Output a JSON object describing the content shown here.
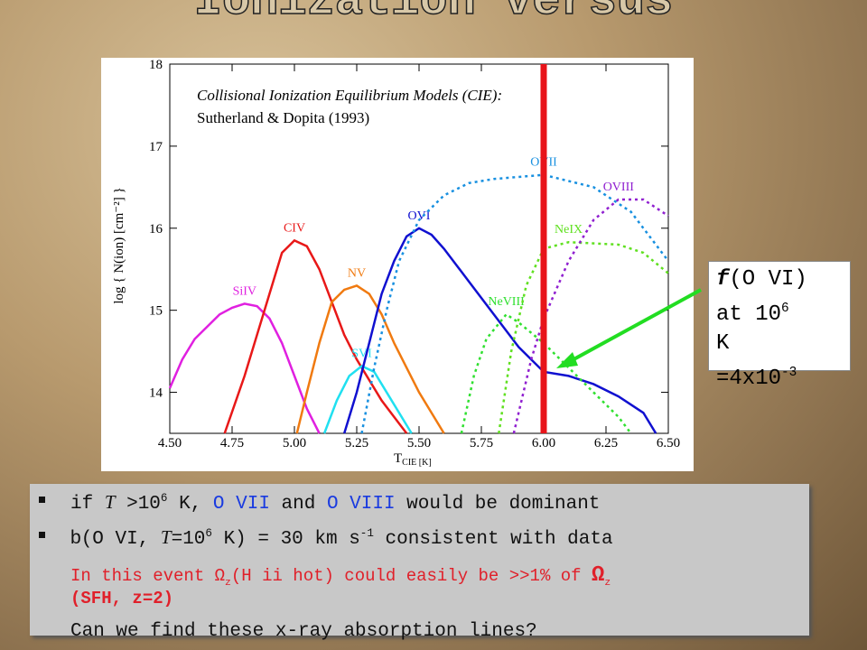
{
  "slide_title": "Ionization versus",
  "chart_data": {
    "type": "line",
    "note_lines": [
      "Collisional Ionization Equilibrium Models (CIE):",
      "Sutherland & Dopita (1993)"
    ],
    "ylabel": "log { N(ion) [cm⁻²] }",
    "xlabel": {
      "main": "T",
      "sub": "CIE [K]"
    },
    "xlim": [
      4.5,
      6.5
    ],
    "ylim": [
      13.5,
      18
    ],
    "xticks": [
      {
        "value": 4.5,
        "label": "4.50"
      },
      {
        "value": 4.75,
        "label": "4.75"
      },
      {
        "value": 5,
        "label": "5.00"
      },
      {
        "value": 5.25,
        "label": "5.25"
      },
      {
        "value": 5.5,
        "label": "5.50"
      },
      {
        "value": 5.75,
        "label": "5.75"
      },
      {
        "value": 6,
        "label": "6.00"
      },
      {
        "value": 6.25,
        "label": "6.25"
      },
      {
        "value": 6.5,
        "label": "6.50"
      }
    ],
    "yticks": [
      14,
      15,
      16,
      17,
      18
    ],
    "marker_x": 6,
    "marker_color": "#e8141a",
    "series": [
      {
        "name": "SiIV",
        "color": "#e020e0",
        "dashed": false,
        "x": [
          4.5,
          4.55,
          4.6,
          4.65,
          4.7,
          4.75,
          4.8,
          4.85,
          4.9,
          4.95,
          5.0,
          5.05,
          5.1
        ],
        "values": [
          14.05,
          14.4,
          14.65,
          14.8,
          14.95,
          15.03,
          15.08,
          15.05,
          14.9,
          14.6,
          14.2,
          13.8,
          13.5
        ]
      },
      {
        "name": "CIV",
        "color": "#e81818",
        "dashed": false,
        "x": [
          4.72,
          4.8,
          4.85,
          4.9,
          4.95,
          5.0,
          5.05,
          5.1,
          5.15,
          5.2,
          5.25,
          5.3,
          5.35,
          5.4,
          5.45
        ],
        "values": [
          13.5,
          14.2,
          14.7,
          15.2,
          15.7,
          15.85,
          15.78,
          15.5,
          15.1,
          14.7,
          14.4,
          14.15,
          13.9,
          13.7,
          13.5
        ]
      },
      {
        "name": "NV",
        "color": "#f07a10",
        "dashed": false,
        "x": [
          5.01,
          5.05,
          5.1,
          5.15,
          5.2,
          5.25,
          5.3,
          5.35,
          5.4,
          5.45,
          5.5,
          5.55,
          5.6
        ],
        "values": [
          13.5,
          14.0,
          14.6,
          15.1,
          15.25,
          15.3,
          15.2,
          14.95,
          14.6,
          14.3,
          14.0,
          13.75,
          13.5
        ]
      },
      {
        "name": "SVI",
        "color": "#20e0f0",
        "dashed": false,
        "x": [
          5.12,
          5.17,
          5.22,
          5.27,
          5.32,
          5.37,
          5.42,
          5.47
        ],
        "values": [
          13.5,
          13.9,
          14.2,
          14.32,
          14.25,
          14.0,
          13.75,
          13.5
        ]
      },
      {
        "name": "OVI",
        "color": "#1010d0",
        "dashed": false,
        "x": [
          5.2,
          5.25,
          5.3,
          5.35,
          5.4,
          5.45,
          5.5,
          5.55,
          5.6,
          5.7,
          5.8,
          5.9,
          6.0,
          6.1,
          6.2,
          6.3,
          6.4,
          6.45
        ],
        "values": [
          13.5,
          14.0,
          14.6,
          15.2,
          15.6,
          15.9,
          16.0,
          15.92,
          15.75,
          15.35,
          14.95,
          14.55,
          14.25,
          14.2,
          14.1,
          13.95,
          13.75,
          13.5
        ]
      },
      {
        "name": "OVII",
        "color": "#1890e0",
        "dashed": true,
        "x": [
          5.27,
          5.32,
          5.37,
          5.42,
          5.5,
          5.6,
          5.7,
          5.8,
          6.0,
          6.2,
          6.35,
          6.5
        ],
        "values": [
          13.5,
          14.3,
          15.0,
          15.6,
          16.1,
          16.4,
          16.55,
          16.6,
          16.65,
          16.5,
          16.2,
          15.6
        ]
      },
      {
        "name": "NeVIII",
        "color": "#30e030",
        "dashed": true,
        "x": [
          5.67,
          5.72,
          5.77,
          5.85,
          5.9,
          6.0,
          6.1,
          6.2,
          6.3,
          6.35
        ],
        "values": [
          13.5,
          14.2,
          14.65,
          14.95,
          14.85,
          14.6,
          14.3,
          14.0,
          13.7,
          13.5
        ]
      },
      {
        "name": "NeIX",
        "color": "#60e020",
        "dashed": true,
        "x": [
          5.82,
          5.87,
          5.93,
          6.0,
          6.1,
          6.3,
          6.4,
          6.5
        ],
        "values": [
          13.5,
          14.5,
          15.3,
          15.75,
          15.83,
          15.8,
          15.7,
          15.45
        ]
      },
      {
        "name": "OVIII",
        "color": "#9020d0",
        "dashed": true,
        "x": [
          5.88,
          5.95,
          6.0,
          6.1,
          6.2,
          6.3,
          6.4,
          6.5
        ],
        "values": [
          13.5,
          14.4,
          14.9,
          15.6,
          16.1,
          16.35,
          16.35,
          16.15
        ]
      }
    ]
  },
  "callout": {
    "f": "f",
    "ion": "(O VI)",
    "at": "at 10",
    "exp": "6",
    "k": "K",
    "val": "=4x10",
    "valexp": "-3"
  },
  "bullets": [
    [
      "if ",
      "T",
      " >10",
      "6",
      " K, ",
      "O VII",
      " and ",
      "O VIII",
      " would be dominant"
    ],
    [
      "b",
      "(O VI, ",
      "T",
      "=10",
      "6",
      " K) = 30 km s",
      "-1",
      " consistent with data"
    ]
  ],
  "red_note": [
    "In this event ",
    "Ω",
    "z",
    "(H ii hot) could easily be >>1% of ",
    "Ω",
    "z",
    "(SFH, z=2)"
  ],
  "question": "Can we find these x-ray absorption lines?"
}
